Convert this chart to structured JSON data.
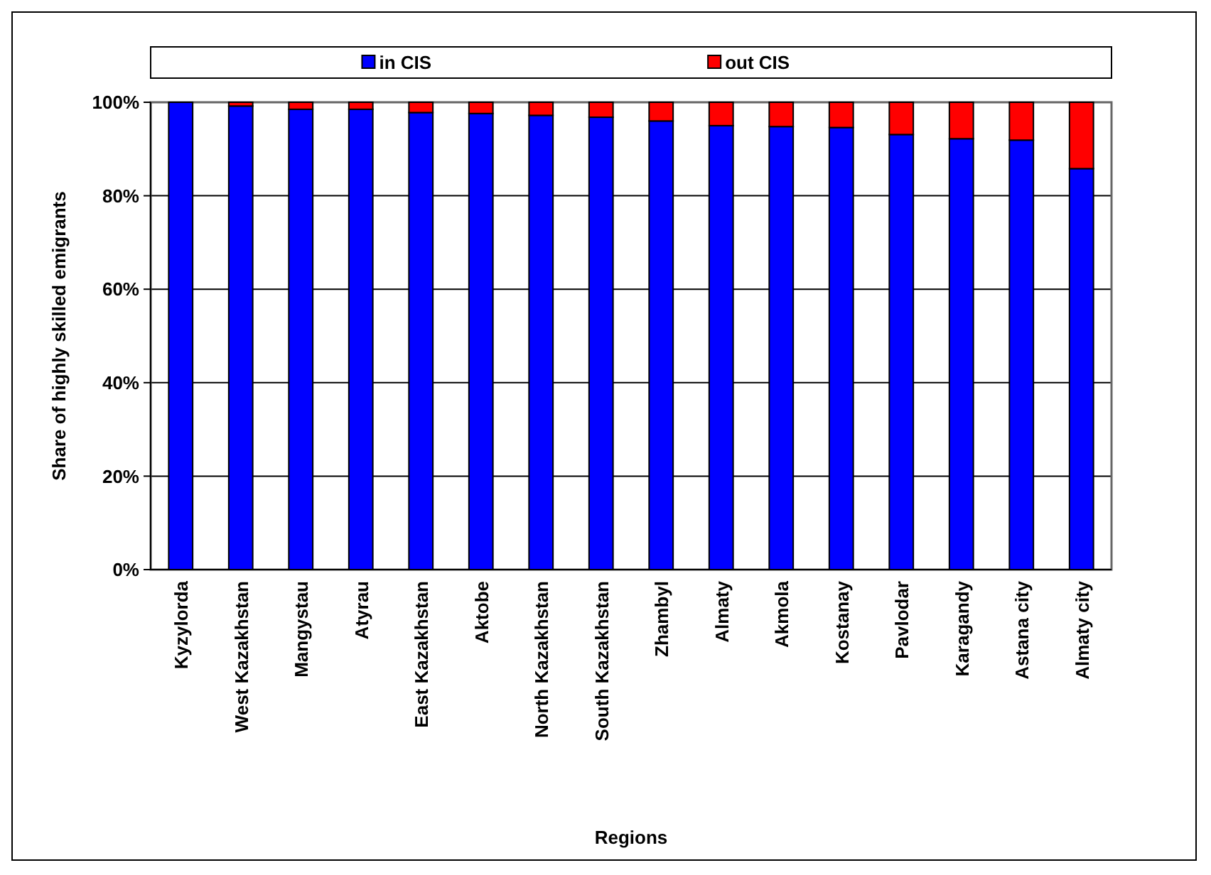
{
  "chart_data": {
    "type": "bar",
    "stacked": true,
    "xlabel": "Regions",
    "ylabel": "Share of highly skilled emigrants",
    "categories": [
      "Kyzylorda",
      "West Kazakhstan",
      "Mangystau",
      "Atyrau",
      "East Kazakhstan",
      "Aktobe",
      "North Kazakhstan",
      "South Kazakhstan",
      "Zhambyl",
      "Almaty",
      "Akmola",
      "Kostanay",
      "Pavlodar",
      "Karagandy",
      "Astana city",
      "Almaty city"
    ],
    "series": [
      {
        "name": "in CIS",
        "color": "#0000ff",
        "values": [
          100,
          99.2,
          98.5,
          98.5,
          97.8,
          97.6,
          97.2,
          96.8,
          96,
          95,
          94.8,
          94.6,
          93.1,
          92.2,
          91.9,
          85.8
        ]
      },
      {
        "name": "out CIS",
        "color": "#ff0000",
        "values": [
          0,
          0.8,
          1.5,
          1.5,
          2.2,
          2.4,
          2.8,
          3.2,
          4,
          5,
          5.2,
          5.4,
          6.9,
          7.8,
          8.1,
          14.2
        ]
      }
    ],
    "ylim": [
      0,
      100
    ],
    "yticks": [
      {
        "value": 0,
        "label": "0%"
      },
      {
        "value": 20,
        "label": "20%"
      },
      {
        "value": 40,
        "label": "40%"
      },
      {
        "value": 60,
        "label": "60%"
      },
      {
        "value": 80,
        "label": "80%"
      },
      {
        "value": 100,
        "label": "100%"
      }
    ],
    "grid": "y",
    "legend": "top"
  }
}
